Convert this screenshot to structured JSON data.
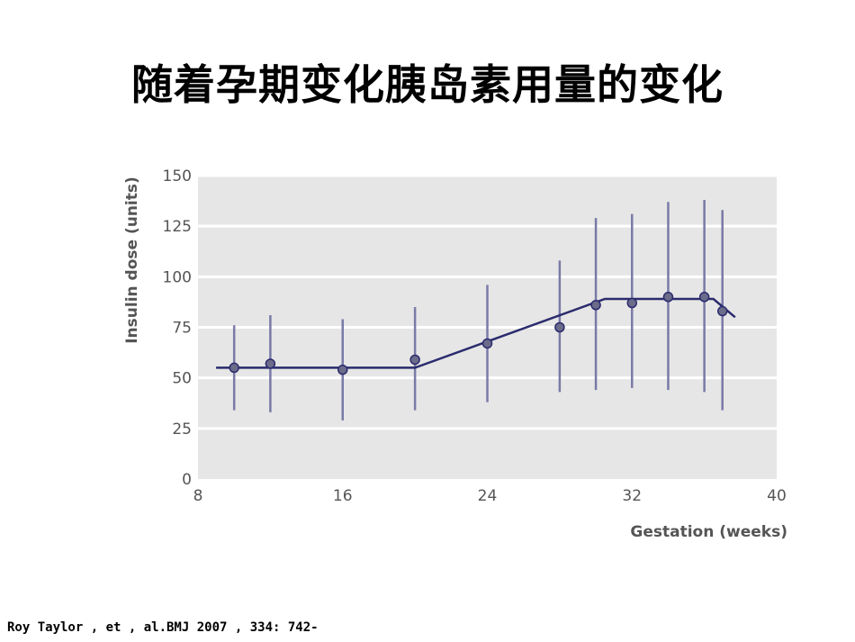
{
  "slide": {
    "title": "随着孕期变化胰岛素用量的变化",
    "citation": "Roy Taylor , et , al.BMJ 2007 , 334: 742-"
  },
  "colors": {
    "plot_background": "#e6e6e6",
    "gridline": "#ffffff",
    "series": "#2b2b6e",
    "marker_fill": "#6b6b8a",
    "error_bar": "#7a7aa8",
    "axis_text": "#555555"
  },
  "chart_data": {
    "type": "scatter",
    "title": "",
    "xlabel": "Gestation (weeks)",
    "ylabel": "Insulin dose (units)",
    "xlim": [
      8,
      40
    ],
    "ylim": [
      0,
      150
    ],
    "xticks": [
      "8",
      "16",
      "24",
      "32",
      "40"
    ],
    "yticks": [
      "0",
      "25",
      "50",
      "75",
      "100",
      "125",
      "150"
    ],
    "grid": true,
    "points": [
      {
        "x": 10,
        "y": 55,
        "low": 34,
        "high": 76
      },
      {
        "x": 12,
        "y": 57,
        "low": 33,
        "high": 81
      },
      {
        "x": 16,
        "y": 54,
        "low": 29,
        "high": 79
      },
      {
        "x": 20,
        "y": 59,
        "low": 34,
        "high": 85
      },
      {
        "x": 24,
        "y": 67,
        "low": 38,
        "high": 96
      },
      {
        "x": 28,
        "y": 75,
        "low": 43,
        "high": 108
      },
      {
        "x": 30,
        "y": 86,
        "low": 44,
        "high": 129
      },
      {
        "x": 32,
        "y": 87,
        "low": 45,
        "high": 131
      },
      {
        "x": 34,
        "y": 90,
        "low": 44,
        "high": 137
      },
      {
        "x": 36,
        "y": 90,
        "low": 43,
        "high": 138
      },
      {
        "x": 37,
        "y": 83,
        "low": 34,
        "high": 133
      }
    ],
    "trend_line": [
      {
        "x": 9,
        "y": 55
      },
      {
        "x": 20,
        "y": 55
      },
      {
        "x": 30.5,
        "y": 89
      },
      {
        "x": 36.5,
        "y": 89
      },
      {
        "x": 37.7,
        "y": 80
      }
    ]
  }
}
